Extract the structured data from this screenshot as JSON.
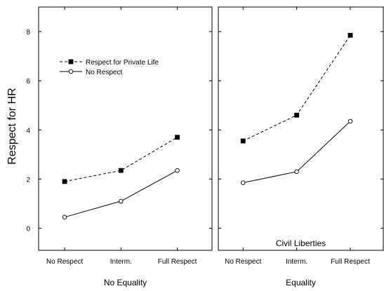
{
  "chart_data": [
    {
      "type": "line",
      "panel_title": "No Equality",
      "inner_label": "",
      "ylabel": "Respect for HR",
      "ylim": [
        -0.9,
        9.0
      ],
      "y_ticks": [
        0,
        2,
        4,
        6,
        8
      ],
      "categories": [
        "No Respect",
        "Interm.",
        "Full Respect"
      ],
      "series": [
        {
          "name": "Respect for Private Life",
          "style": "dashed",
          "marker": "filled-square",
          "values": [
            1.9,
            2.35,
            3.7
          ]
        },
        {
          "name": "No Respect",
          "style": "solid",
          "marker": "open-circle",
          "values": [
            0.45,
            1.1,
            2.35
          ]
        }
      ],
      "legend": {
        "placement": "upper-left"
      },
      "grid": false
    },
    {
      "type": "line",
      "panel_title": "Equality",
      "inner_label": "Civil Liberties",
      "ylabel": "",
      "ylim": [
        -0.9,
        9.0
      ],
      "y_ticks": [
        0,
        2,
        4,
        6,
        8
      ],
      "categories": [
        "No Respect",
        "Interm.",
        "Full Respect"
      ],
      "series": [
        {
          "name": "Respect for Private Life",
          "style": "dashed",
          "marker": "filled-square",
          "values": [
            3.55,
            4.6,
            7.85
          ]
        },
        {
          "name": "No Respect",
          "style": "solid",
          "marker": "open-circle",
          "values": [
            1.85,
            2.3,
            4.35
          ]
        }
      ],
      "grid": false
    }
  ]
}
